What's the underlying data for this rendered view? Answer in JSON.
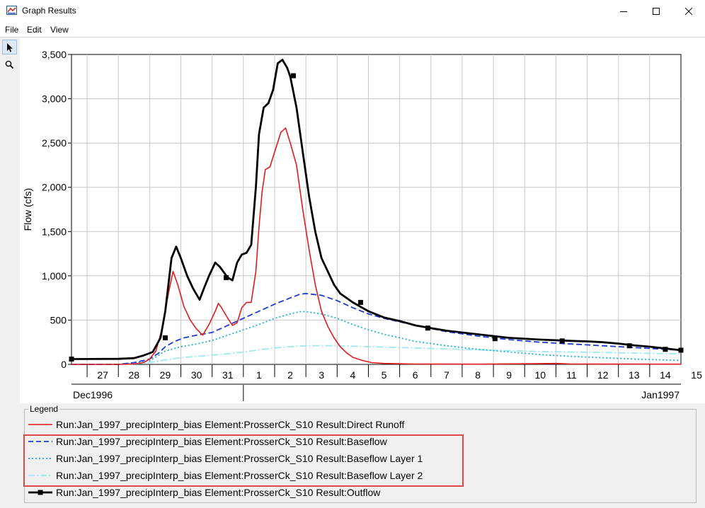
{
  "window": {
    "title": "Graph Results",
    "icon": "hec-hms-app-icon",
    "controls": [
      "minimize-icon",
      "maximize-icon",
      "close-icon"
    ]
  },
  "menu": [
    "File",
    "Edit",
    "View"
  ],
  "tools": [
    {
      "name": "pointer-icon",
      "active": true
    },
    {
      "name": "zoom-magnifier-icon",
      "active": false
    }
  ],
  "chart_data": {
    "type": "line",
    "ylabel": "Flow (cfs)",
    "ylim": [
      0,
      3500
    ],
    "yticks": [
      0,
      500,
      1000,
      1500,
      2000,
      2500,
      3000,
      3500
    ],
    "ytick_labels": [
      "0",
      "500",
      "1,000",
      "1,500",
      "2,000",
      "2,500",
      "3,000",
      "3,500"
    ],
    "xlim": [
      -1,
      18.5
    ],
    "x_unit": "days from 1996-12-27 (label centered at day)",
    "xtick_labels": [
      "27",
      "28",
      "29",
      "30",
      "31",
      "1",
      "2",
      "3",
      "4",
      "5",
      "6",
      "7",
      "8",
      "9",
      "10",
      "11",
      "12",
      "13",
      "14",
      "15"
    ],
    "month_labels": [
      "Dec1996",
      "Jan1997"
    ],
    "grid": true,
    "legend_placement": "below",
    "series": [
      {
        "name": "Run:Jan_1997_precipInterp_bias Element:ProsserCk_S10 Result:Direct Runoff",
        "color": "#e41a1c",
        "style": "solid",
        "width": 1.6,
        "markers": false,
        "points": [
          [
            -1,
            0
          ],
          [
            0.5,
            0
          ],
          [
            1,
            5
          ],
          [
            1.3,
            20
          ],
          [
            1.5,
            60
          ],
          [
            1.7,
            150
          ],
          [
            1.9,
            400
          ],
          [
            2.1,
            800
          ],
          [
            2.25,
            1050
          ],
          [
            2.4,
            900
          ],
          [
            2.6,
            650
          ],
          [
            2.8,
            500
          ],
          [
            3.0,
            400
          ],
          [
            3.2,
            330
          ],
          [
            3.4,
            450
          ],
          [
            3.6,
            600
          ],
          [
            3.7,
            690
          ],
          [
            3.8,
            640
          ],
          [
            4.0,
            520
          ],
          [
            4.15,
            440
          ],
          [
            4.3,
            470
          ],
          [
            4.45,
            640
          ],
          [
            4.6,
            700
          ],
          [
            4.75,
            700
          ],
          [
            4.9,
            1050
          ],
          [
            5.0,
            1550
          ],
          [
            5.1,
            1950
          ],
          [
            5.2,
            2200
          ],
          [
            5.35,
            2230
          ],
          [
            5.5,
            2400
          ],
          [
            5.7,
            2620
          ],
          [
            5.85,
            2670
          ],
          [
            6.0,
            2500
          ],
          [
            6.2,
            2250
          ],
          [
            6.4,
            1750
          ],
          [
            6.6,
            1300
          ],
          [
            6.8,
            900
          ],
          [
            7.0,
            600
          ],
          [
            7.2,
            430
          ],
          [
            7.4,
            300
          ],
          [
            7.6,
            200
          ],
          [
            7.8,
            130
          ],
          [
            8.0,
            80
          ],
          [
            8.3,
            45
          ],
          [
            8.6,
            20
          ],
          [
            9.0,
            10
          ],
          [
            10,
            4
          ],
          [
            12,
            2
          ],
          [
            14.5,
            10
          ],
          [
            15,
            4
          ],
          [
            18.5,
            2
          ]
        ]
      },
      {
        "name": "Run:Jan_1997_precipInterp_bias Element:ProsserCk_S10 Result:Baseflow",
        "color": "#1f3bd6",
        "style": "dashed",
        "width": 1.8,
        "markers": false,
        "points": [
          [
            -1,
            0
          ],
          [
            0.5,
            0
          ],
          [
            1,
            20
          ],
          [
            1.5,
            60
          ],
          [
            1.8,
            130
          ],
          [
            2.0,
            200
          ],
          [
            2.3,
            260
          ],
          [
            2.6,
            300
          ],
          [
            3.0,
            330
          ],
          [
            3.5,
            360
          ],
          [
            4.0,
            440
          ],
          [
            4.5,
            520
          ],
          [
            5.0,
            600
          ],
          [
            5.5,
            680
          ],
          [
            6.0,
            750
          ],
          [
            6.3,
            790
          ],
          [
            6.5,
            800
          ],
          [
            7.0,
            780
          ],
          [
            7.5,
            720
          ],
          [
            8.0,
            640
          ],
          [
            8.5,
            570
          ],
          [
            9.0,
            520
          ],
          [
            9.5,
            480
          ],
          [
            10,
            440
          ],
          [
            11,
            370
          ],
          [
            12,
            320
          ],
          [
            13,
            280
          ],
          [
            14,
            250
          ],
          [
            15,
            230
          ],
          [
            16,
            210
          ],
          [
            17,
            190
          ],
          [
            18.5,
            160
          ]
        ]
      },
      {
        "name": "Run:Jan_1997_precipInterp_bias Element:ProsserCk_S10 Result:Baseflow Layer 1",
        "color": "#19b0d8",
        "style": "dotted",
        "width": 1.8,
        "markers": false,
        "points": [
          [
            -1,
            0
          ],
          [
            0.5,
            0
          ],
          [
            1,
            15
          ],
          [
            1.5,
            40
          ],
          [
            2.0,
            150
          ],
          [
            2.5,
            200
          ],
          [
            3.0,
            230
          ],
          [
            3.5,
            270
          ],
          [
            4.0,
            330
          ],
          [
            4.5,
            390
          ],
          [
            5.0,
            450
          ],
          [
            5.5,
            520
          ],
          [
            6.0,
            570
          ],
          [
            6.3,
            595
          ],
          [
            6.5,
            595
          ],
          [
            7.0,
            570
          ],
          [
            7.5,
            520
          ],
          [
            8.0,
            450
          ],
          [
            8.5,
            390
          ],
          [
            9.0,
            340
          ],
          [
            9.5,
            300
          ],
          [
            10,
            260
          ],
          [
            11,
            210
          ],
          [
            12,
            170
          ],
          [
            13,
            140
          ],
          [
            14,
            110
          ],
          [
            15,
            90
          ],
          [
            16,
            75
          ],
          [
            17,
            60
          ],
          [
            18.5,
            45
          ]
        ]
      },
      {
        "name": "Run:Jan_1997_precipInterp_bias Element:ProsserCk_S10 Result:Baseflow Layer 2",
        "color": "#9ee8f0",
        "style": "dashdot",
        "width": 1.8,
        "markers": false,
        "points": [
          [
            -1,
            0
          ],
          [
            0.5,
            0
          ],
          [
            1,
            5
          ],
          [
            1.5,
            20
          ],
          [
            2.0,
            50
          ],
          [
            2.5,
            75
          ],
          [
            3.0,
            90
          ],
          [
            3.5,
            105
          ],
          [
            4.0,
            120
          ],
          [
            4.5,
            140
          ],
          [
            5.0,
            165
          ],
          [
            5.5,
            185
          ],
          [
            6.0,
            200
          ],
          [
            6.5,
            210
          ],
          [
            7.0,
            212
          ],
          [
            7.5,
            210
          ],
          [
            8.0,
            205
          ],
          [
            9,
            195
          ],
          [
            10,
            185
          ],
          [
            11,
            175
          ],
          [
            12,
            165
          ],
          [
            13,
            155
          ],
          [
            14,
            145
          ],
          [
            15,
            140
          ],
          [
            16,
            135
          ],
          [
            17,
            128
          ],
          [
            18.5,
            118
          ]
        ]
      },
      {
        "name": "Run:Jan_1997_precipInterp_bias Element:ProsserCk_S10 Result:Outflow",
        "color": "#000000",
        "style": "solid",
        "width": 2.8,
        "markers": true,
        "points": [
          [
            -1,
            60
          ],
          [
            0.5,
            62
          ],
          [
            1,
            70
          ],
          [
            1.3,
            100
          ],
          [
            1.6,
            140
          ],
          [
            1.85,
            300
          ],
          [
            2.0,
            600
          ],
          [
            2.2,
            1200
          ],
          [
            2.35,
            1330
          ],
          [
            2.5,
            1200
          ],
          [
            2.7,
            1000
          ],
          [
            2.9,
            850
          ],
          [
            3.1,
            730
          ],
          [
            3.25,
            870
          ],
          [
            3.4,
            1000
          ],
          [
            3.6,
            1150
          ],
          [
            3.75,
            1100
          ],
          [
            4.0,
            980
          ],
          [
            4.15,
            950
          ],
          [
            4.3,
            1150
          ],
          [
            4.45,
            1240
          ],
          [
            4.6,
            1260
          ],
          [
            4.75,
            1350
          ],
          [
            4.9,
            2000
          ],
          [
            5.0,
            2600
          ],
          [
            5.15,
            2900
          ],
          [
            5.3,
            2950
          ],
          [
            5.45,
            3100
          ],
          [
            5.6,
            3400
          ],
          [
            5.75,
            3440
          ],
          [
            5.9,
            3350
          ],
          [
            6.0,
            3250
          ],
          [
            6.2,
            2900
          ],
          [
            6.4,
            2400
          ],
          [
            6.6,
            1900
          ],
          [
            6.8,
            1500
          ],
          [
            7.0,
            1200
          ],
          [
            7.2,
            1050
          ],
          [
            7.4,
            900
          ],
          [
            7.6,
            800
          ],
          [
            7.8,
            750
          ],
          [
            8.0,
            700
          ],
          [
            8.5,
            600
          ],
          [
            9.0,
            530
          ],
          [
            9.5,
            490
          ],
          [
            10,
            440
          ],
          [
            10.5,
            410
          ],
          [
            11,
            380
          ],
          [
            12,
            340
          ],
          [
            13,
            300
          ],
          [
            14,
            280
          ],
          [
            15,
            265
          ],
          [
            15.5,
            260
          ],
          [
            16,
            250
          ],
          [
            16.5,
            235
          ],
          [
            17,
            215
          ],
          [
            17.5,
            200
          ],
          [
            18,
            180
          ],
          [
            18.5,
            160
          ]
        ],
        "marker_points": [
          [
            -1,
            60
          ],
          [
            2.0,
            300
          ],
          [
            3.95,
            980
          ],
          [
            6.1,
            3260
          ],
          [
            8.25,
            700
          ],
          [
            10.4,
            410
          ],
          [
            12.55,
            290
          ],
          [
            14.7,
            265
          ],
          [
            16.85,
            210
          ],
          [
            18.0,
            170
          ],
          [
            18.5,
            160
          ]
        ]
      }
    ]
  },
  "legend": {
    "title": "Legend",
    "entries": [
      "Run:Jan_1997_precipInterp_bias Element:ProsserCk_S10 Result:Direct Runoff",
      "Run:Jan_1997_precipInterp_bias Element:ProsserCk_S10 Result:Baseflow",
      "Run:Jan_1997_precipInterp_bias Element:ProsserCk_S10 Result:Baseflow Layer 1",
      "Run:Jan_1997_precipInterp_bias Element:ProsserCk_S10 Result:Baseflow Layer 2",
      "Run:Jan_1997_precipInterp_bias Element:ProsserCk_S10 Result:Outflow"
    ],
    "highlight_color": "#e04848"
  }
}
